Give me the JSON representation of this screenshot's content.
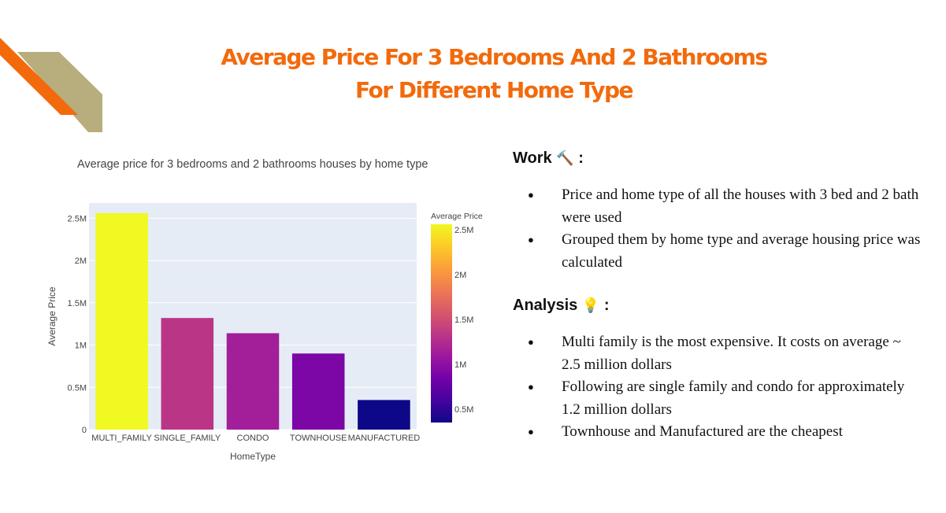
{
  "slide": {
    "title_line1": "Average Price For 3 Bedrooms And 2 Bathrooms",
    "title_line2": "For Different Home Type"
  },
  "colors": {
    "accent_orange": "#f26a0c",
    "accent_tan": "#b8ad7c",
    "title": "#f26a0c"
  },
  "chart_data": {
    "type": "bar",
    "title": "Average price for 3 bedrooms and 2 bathrooms houses by home type",
    "xlabel": "HomeType",
    "ylabel": "Average Price",
    "categories": [
      "MULTI_FAMILY",
      "SINGLE_FAMILY",
      "CONDO",
      "TOWNHOUSE",
      "MANUFACTURED"
    ],
    "values": [
      2560000,
      1320000,
      1140000,
      900000,
      350000
    ],
    "ylim": [
      0,
      2680000
    ],
    "y_ticks": [
      0,
      500000,
      1000000,
      1500000,
      2000000,
      2500000
    ],
    "y_tick_labels": [
      "0",
      "0.5M",
      "1M",
      "1.5M",
      "2M",
      "2.5M"
    ],
    "grid": true,
    "colorbar": {
      "title": "Average Price",
      "range": [
        350000,
        2560000
      ],
      "ticks": [
        500000,
        1000000,
        1500000,
        2000000,
        2500000
      ],
      "tick_labels": [
        "0.5M",
        "1M",
        "1.5M",
        "2M",
        "2.5M"
      ],
      "colorscale": [
        "#0d0887",
        "#46039f",
        "#7201a8",
        "#9c179e",
        "#bd3786",
        "#d8576b",
        "#ed7953",
        "#fb9f3a",
        "#fdca26",
        "#f0f921"
      ]
    }
  },
  "work": {
    "heading": "Work",
    "icon": "hammer-icon",
    "glyph": "🔨",
    "colon": ":",
    "bullets": [
      "Price and home type of all the houses with 3 bed and 2 bath were used",
      "Grouped them by home type and average housing price was calculated"
    ]
  },
  "analysis": {
    "heading": "Analysis",
    "icon": "lightbulb-icon",
    "glyph": "💡",
    "colon": ":",
    "bullets": [
      "Multi family is the most expensive. It costs on average ~ 2.5 million dollars",
      "Following are single family and condo for approximately 1.2 million dollars",
      "Townhouse and Manufactured are the cheapest"
    ]
  }
}
